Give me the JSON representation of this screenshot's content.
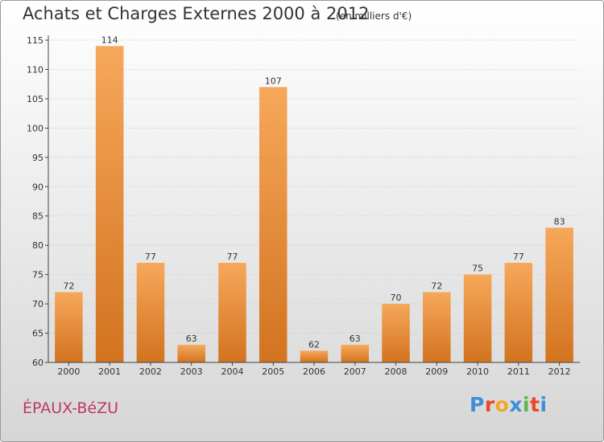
{
  "header": {
    "title": "Achats et Charges Externes 2000 à 2012",
    "subtitle": "(en milliers d'€)"
  },
  "footer": {
    "town": "ÉPAUX-BéZU",
    "logo_text": "Proxiti"
  },
  "logo_colors": [
    "#3d8fd6",
    "#e8472a",
    "#f2a72a",
    "#3d8fd6",
    "#5bb84a",
    "#e8472a",
    "#3d8fd6"
  ],
  "colors": {
    "bar_light": "#f6a85a",
    "bar_dark": "#d2731f",
    "axis": "#444444",
    "grid": "#c8c8c8"
  },
  "chart_data": {
    "type": "bar",
    "title": "Achats et Charges Externes 2000 à 2012",
    "subtitle": "(en milliers d'€)",
    "categories": [
      "2000",
      "2001",
      "2002",
      "2003",
      "2004",
      "2005",
      "2006",
      "2007",
      "2008",
      "2009",
      "2010",
      "2011",
      "2012"
    ],
    "values": [
      72,
      114,
      77,
      63,
      77,
      107,
      62,
      63,
      70,
      72,
      75,
      77,
      83
    ],
    "ylim": [
      60,
      115
    ],
    "yticks": [
      60,
      65,
      70,
      75,
      80,
      85,
      90,
      95,
      100,
      105,
      110,
      115
    ],
    "grid": true,
    "xlabel": "",
    "ylabel": ""
  }
}
